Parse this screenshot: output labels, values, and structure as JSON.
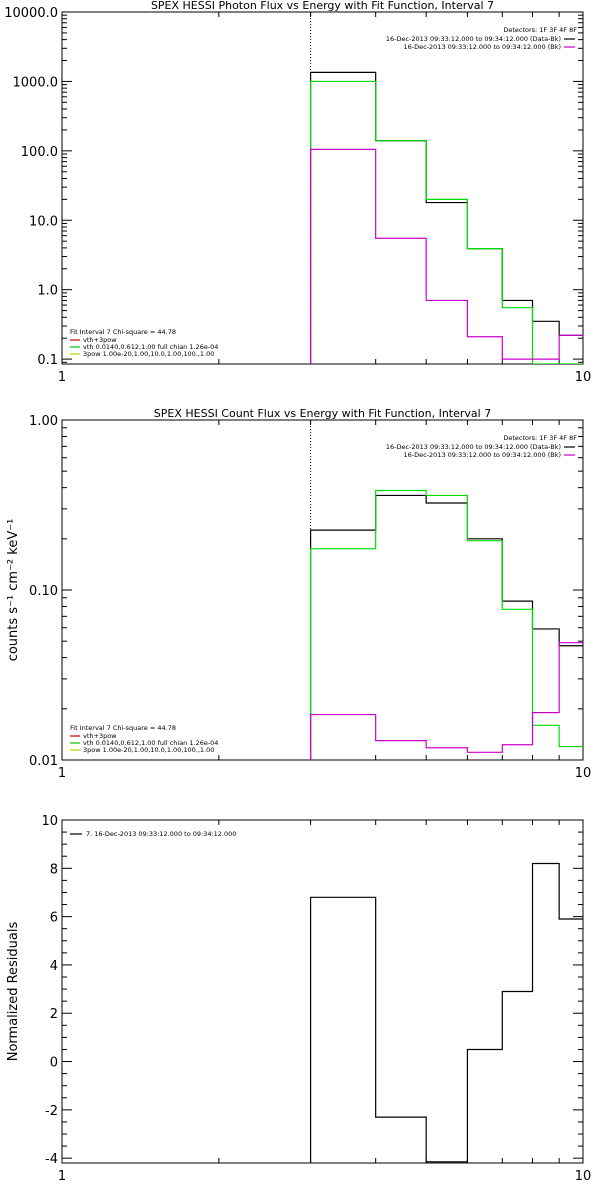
{
  "chart_data": [
    {
      "type": "line",
      "title": "SPEX HESSI Photon Flux vs Energy with Fit Function, Interval 7",
      "xscale": "log",
      "yscale": "log",
      "xlim": [
        1,
        10
      ],
      "ylim": [
        0.085,
        10000
      ],
      "x_ticks": [
        1,
        10
      ],
      "x_tick_labels": [
        "1",
        "10"
      ],
      "y_ticks": [
        0.1,
        1,
        10,
        100,
        1000,
        10000
      ],
      "y_tick_labels": [
        "0.1",
        "1.0",
        "10.0",
        "100.0",
        "1000.0",
        "10000.0"
      ],
      "dotted_vline_x": 3,
      "legend_top_right": {
        "header": "Detectors: 1F 3F 4F 8F",
        "entries": [
          {
            "label": "16-Dec-2013 09:33:12.000 to 09:34:12.000 (Data-Bk)",
            "color": "#000000"
          },
          {
            "label": "16-Dec-2013 09:33:12.000 to 09:34:12.000 (Bk)",
            "color": "#cc00cc"
          }
        ]
      },
      "legend_bottom_left": {
        "header": "Fit Interval 7   Chi-square = 44.78",
        "entries": [
          {
            "label": "vth+3pow",
            "color": "#cc0000"
          },
          {
            "label": "vth 0.0140,0.612,1.00  full chian 1.26e-04",
            "color": "#00cc00"
          },
          {
            "label": "3pow 1.00e-20,1.00,10.0,1.00,100.,1.00",
            "color": "#cccc00"
          }
        ]
      },
      "series": [
        {
          "color": "#000000",
          "edges": [
            3,
            4,
            5,
            6,
            7,
            8,
            9,
            10
          ],
          "values": [
            1350,
            140,
            18,
            3.9,
            0.7,
            0.35,
            0.22
          ]
        },
        {
          "color": "#00dd00",
          "edges": [
            3,
            4,
            5,
            6,
            7,
            8,
            9,
            10
          ],
          "values": [
            1000,
            140,
            20,
            3.9,
            0.55,
            0.085,
            0.085
          ]
        },
        {
          "color": "#cc00cc",
          "edges": [
            3,
            4,
            5,
            6,
            7,
            8,
            9,
            10
          ],
          "values": [
            105,
            5.5,
            0.7,
            0.21,
            0.1,
            0.1,
            0.22
          ]
        }
      ]
    },
    {
      "type": "line",
      "title": "SPEX HESSI Count Flux vs Energy with Fit Function, Interval 7",
      "ylabel": "counts s⁻¹ cm⁻² keV⁻¹",
      "xscale": "log",
      "yscale": "log",
      "xlim": [
        1,
        10
      ],
      "ylim": [
        0.01,
        1.0
      ],
      "x_ticks": [
        1,
        10
      ],
      "x_tick_labels": [
        "1",
        "10"
      ],
      "y_ticks": [
        0.01,
        0.1,
        1.0
      ],
      "y_tick_labels": [
        "0.01",
        "0.10",
        "1.00"
      ],
      "dotted_vline_x": 3,
      "legend_top_right": {
        "header": "Detectors: 1F 3F 4F 8F",
        "entries": [
          {
            "label": "16-Dec-2013 09:33:12.000 to 09:34:12.000 (Data-Bk)",
            "color": "#000000"
          },
          {
            "label": "16-Dec-2013 09:33:12.000 to 09:34:12.000 (Bk)",
            "color": "#cc00cc"
          }
        ]
      },
      "legend_bottom_left": {
        "header": "Fit Interval 7   Chi-square = 44.78",
        "entries": [
          {
            "label": "vth+3pow",
            "color": "#cc0000"
          },
          {
            "label": "vth 0.0140,0.612,1.00  full chian 1.26e-04",
            "color": "#00cc00"
          },
          {
            "label": "3pow 1.00e-20,1.00,10.0,1.00,100.,1.00",
            "color": "#cccc00"
          }
        ]
      },
      "series": [
        {
          "color": "#000000",
          "edges": [
            3,
            4,
            5,
            6,
            7,
            8,
            9,
            10
          ],
          "values": [
            0.225,
            0.36,
            0.325,
            0.2,
            0.086,
            0.059,
            0.047
          ]
        },
        {
          "color": "#00dd00",
          "edges": [
            3,
            4,
            5,
            6,
            7,
            8,
            9,
            10
          ],
          "values": [
            0.175,
            0.385,
            0.36,
            0.195,
            0.077,
            0.016,
            0.012
          ]
        },
        {
          "color": "#cc00cc",
          "edges": [
            3,
            4,
            5,
            6,
            7,
            8,
            9,
            10
          ],
          "values": [
            0.0185,
            0.013,
            0.0118,
            0.0111,
            0.0123,
            0.019,
            0.049
          ]
        }
      ]
    },
    {
      "type": "line",
      "ylabel": "Normalized Residuals",
      "xscale": "log",
      "yscale": "linear",
      "xlim": [
        1,
        10
      ],
      "ylim": [
        -4.2,
        10
      ],
      "x_ticks": [
        1,
        10
      ],
      "x_tick_labels": [
        "1",
        "10"
      ],
      "y_ticks": [
        -4,
        -2,
        0,
        2,
        4,
        6,
        8,
        10
      ],
      "y_tick_labels": [
        "-4",
        "-2",
        "0",
        "2",
        "4",
        "6",
        "8",
        "10"
      ],
      "legend_top_left": {
        "entries": [
          {
            "label": "7. 16-Dec-2013 09:33:12.000 to 09:34:12.000",
            "color": "#000000"
          }
        ]
      },
      "series": [
        {
          "color": "#000000",
          "edges": [
            3,
            4,
            5,
            6,
            7,
            8,
            9,
            10
          ],
          "values": [
            6.8,
            -2.3,
            -4.15,
            0.5,
            2.9,
            8.2,
            5.9
          ]
        }
      ]
    }
  ]
}
